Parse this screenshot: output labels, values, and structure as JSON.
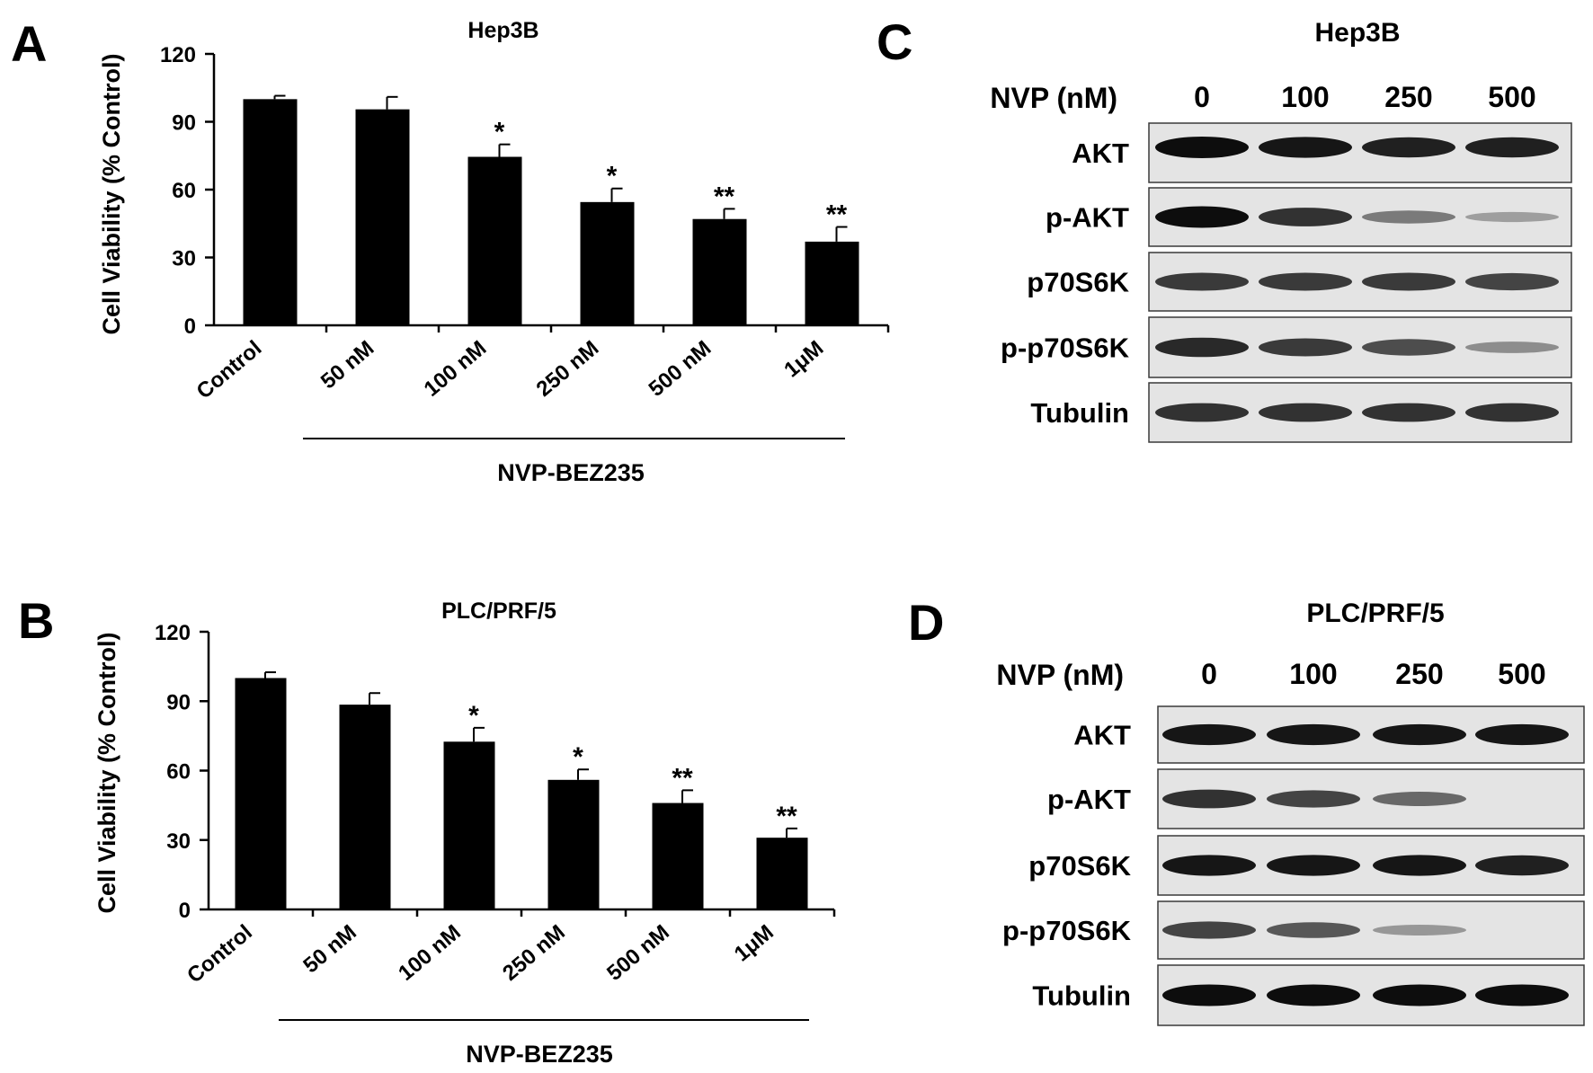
{
  "panels": [
    {
      "letter": "A",
      "title": "Hep3B",
      "ylabel": "Cell Viability (% Control)",
      "group_label": "NVP-BEZ235"
    },
    {
      "letter": "B",
      "title": "PLC/PRF/5",
      "ylabel": "Cell Viability (% Control)",
      "group_label": "NVP-BEZ235"
    }
  ],
  "chart_data": [
    {
      "type": "bar",
      "title": "Hep3B",
      "xlabel": "NVP-BEZ235",
      "ylabel": "Cell Viability (% Control)",
      "ylim": [
        0,
        120
      ],
      "yticks": [
        0,
        30,
        60,
        90,
        120
      ],
      "categories": [
        "Control",
        "50 nM",
        "100 nM",
        "250 nM",
        "500 nM",
        "1μM"
      ],
      "values": [
        100,
        95.5,
        74.5,
        54.5,
        47,
        37
      ],
      "errors": [
        1.5,
        5.5,
        5.5,
        6,
        4.5,
        6.5
      ],
      "significance": [
        "",
        "",
        "*",
        "*",
        "**",
        "**"
      ],
      "grid": false,
      "legend": false
    },
    {
      "type": "bar",
      "title": "PLC/PRF/5",
      "xlabel": "NVP-BEZ235",
      "ylabel": "Cell Viability (% Control)",
      "ylim": [
        0,
        120
      ],
      "yticks": [
        0,
        30,
        60,
        90,
        120
      ],
      "categories": [
        "Control",
        "50 nM",
        "100 nM",
        "250 nM",
        "500 nM",
        "1μM"
      ],
      "values": [
        100,
        88.5,
        72.5,
        56,
        46,
        31
      ],
      "errors": [
        2.5,
        5,
        6,
        4.5,
        5.5,
        4
      ],
      "significance": [
        "",
        "",
        "*",
        "*",
        "**",
        "**"
      ],
      "grid": false,
      "legend": false
    }
  ],
  "blots": [
    {
      "letter": "C",
      "title": "Hep3B",
      "dose_label": "NVP (nM)",
      "doses": [
        "0",
        "100",
        "250",
        "500"
      ],
      "rows": [
        {
          "label": "AKT",
          "intensity": [
            1.0,
            0.95,
            0.9,
            0.9
          ]
        },
        {
          "label": "p-AKT",
          "intensity": [
            1.0,
            0.8,
            0.4,
            0.2
          ]
        },
        {
          "label": "p70S6K",
          "intensity": [
            0.75,
            0.75,
            0.75,
            0.7
          ]
        },
        {
          "label": "p-p70S6K",
          "intensity": [
            0.85,
            0.75,
            0.65,
            0.3
          ]
        },
        {
          "label": "Tubulin",
          "intensity": [
            0.8,
            0.8,
            0.8,
            0.8
          ]
        }
      ]
    },
    {
      "letter": "D",
      "title": "PLC/PRF/5",
      "dose_label": "NVP (nM)",
      "doses": [
        "0",
        "100",
        "250",
        "500"
      ],
      "rows": [
        {
          "label": "AKT",
          "intensity": [
            0.95,
            0.95,
            0.95,
            0.95
          ]
        },
        {
          "label": "p-AKT",
          "intensity": [
            0.8,
            0.7,
            0.5,
            0.0
          ]
        },
        {
          "label": "p70S6K",
          "intensity": [
            0.95,
            0.95,
            0.95,
            0.9
          ]
        },
        {
          "label": "p-p70S6K",
          "intensity": [
            0.7,
            0.6,
            0.25,
            0.0
          ]
        },
        {
          "label": "Tubulin",
          "intensity": [
            1.0,
            1.0,
            1.0,
            1.0
          ]
        }
      ]
    }
  ]
}
